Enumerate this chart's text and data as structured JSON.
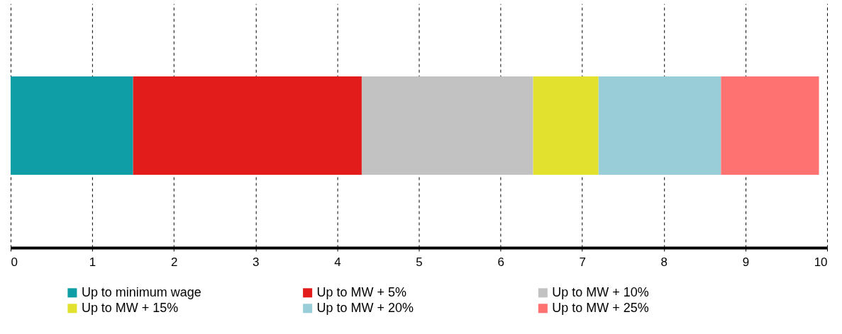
{
  "chart_data": {
    "type": "bar",
    "orientation": "horizontal",
    "stacked": true,
    "categories": [
      null
    ],
    "series": [
      {
        "name": "Up to minimum wage",
        "color": "#109ea6",
        "values": [
          1.5
        ]
      },
      {
        "name": "Up to MW + 5%",
        "color": "#e21b1b",
        "values": [
          2.8
        ]
      },
      {
        "name": "Up to MW + 10%",
        "color": "#c2c2c2",
        "values": [
          2.1
        ]
      },
      {
        "name": "Up to MW + 15%",
        "color": "#e2e22e",
        "values": [
          0.8
        ]
      },
      {
        "name": "Up to MW + 20%",
        "color": "#99ced8",
        "values": [
          1.5
        ]
      },
      {
        "name": "Up to MW + 25%",
        "color": "#ff7272",
        "values": [
          1.2
        ]
      }
    ],
    "xlim": [
      0,
      10
    ],
    "xticks": [
      0,
      1,
      2,
      3,
      4,
      5,
      6,
      7,
      8,
      9,
      10
    ],
    "grid": "x",
    "legend": "bottom"
  }
}
